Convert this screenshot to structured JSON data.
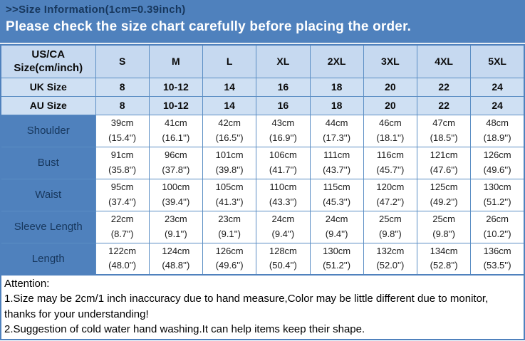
{
  "header": {
    "title": ">>Size Information(1cm=0.39inch)",
    "notice": "Please check the size chart carefully before placing the order."
  },
  "table": {
    "corner_label": "US/CA\nSize(cm/inch)",
    "size_columns": [
      "S",
      "M",
      "L",
      "XL",
      "2XL",
      "3XL",
      "4XL",
      "5XL"
    ],
    "size_rows": [
      {
        "label": "UK Size",
        "values": [
          "8",
          "10-12",
          "14",
          "16",
          "18",
          "20",
          "22",
          "24"
        ]
      },
      {
        "label": "AU Size",
        "values": [
          "8",
          "10-12",
          "14",
          "16",
          "18",
          "20",
          "22",
          "24"
        ]
      }
    ],
    "measurement_rows": [
      {
        "label": "Shoulder",
        "cm": [
          "39cm",
          "41cm",
          "42cm",
          "43cm",
          "44cm",
          "46cm",
          "47cm",
          "48cm"
        ],
        "inch": [
          "(15.4'')",
          "(16.1'')",
          "(16.5'')",
          "(16.9'')",
          "(17.3'')",
          "(18.1'')",
          "(18.5'')",
          "(18.9'')"
        ]
      },
      {
        "label": "Bust",
        "cm": [
          "91cm",
          "96cm",
          "101cm",
          "106cm",
          "111cm",
          "116cm",
          "121cm",
          "126cm"
        ],
        "inch": [
          "(35.8'')",
          "(37.8'')",
          "(39.8'')",
          "(41.7'')",
          "(43.7'')",
          "(45.7'')",
          "(47.6'')",
          "(49.6'')"
        ]
      },
      {
        "label": "Waist",
        "cm": [
          "95cm",
          "100cm",
          "105cm",
          "110cm",
          "115cm",
          "120cm",
          "125cm",
          "130cm"
        ],
        "inch": [
          "(37.4'')",
          "(39.4'')",
          "(41.3'')",
          "(43.3'')",
          "(45.3'')",
          "(47.2'')",
          "(49.2'')",
          "(51.2'')"
        ]
      },
      {
        "label": "Sleeve Length",
        "cm": [
          "22cm",
          "23cm",
          "23cm",
          "24cm",
          "24cm",
          "25cm",
          "25cm",
          "26cm"
        ],
        "inch": [
          "(8.7'')",
          "(9.1'')",
          "(9.1'')",
          "(9.4'')",
          "(9.4'')",
          "(9.8'')",
          "(9.8'')",
          "(10.2'')"
        ]
      },
      {
        "label": "Length",
        "cm": [
          "122cm",
          "124cm",
          "126cm",
          "128cm",
          "130cm",
          "132cm",
          "134cm",
          "136cm"
        ],
        "inch": [
          "(48.0'')",
          "(48.8'')",
          "(49.6'')",
          "(50.4'')",
          "(51.2'')",
          "(52.0'')",
          "(52.8'')",
          "(53.5'')"
        ]
      }
    ]
  },
  "attention": {
    "heading": "Attention:",
    "lines": [
      "1.Size may be 2cm/1 inch inaccuracy due to hand measure,Color may be little different due to monitor,",
      "thanks for your understanding!",
      "2.Suggestion of cold water hand washing.It can help items keep their shape."
    ]
  },
  "colors": {
    "banner_blue": "#4f81bd",
    "banner_title_text": "#17375d",
    "banner_notice_text": "#ffffff",
    "header_row_bg": "#c6d9f0",
    "size_row_bg": "#cfe0f3",
    "label_cell_bg": "#4f81bd",
    "label_cell_text": "#17375d",
    "grid_border": "#5b8ec4",
    "cell_text": "#1a1a1a",
    "attention_text": "#000000"
  }
}
